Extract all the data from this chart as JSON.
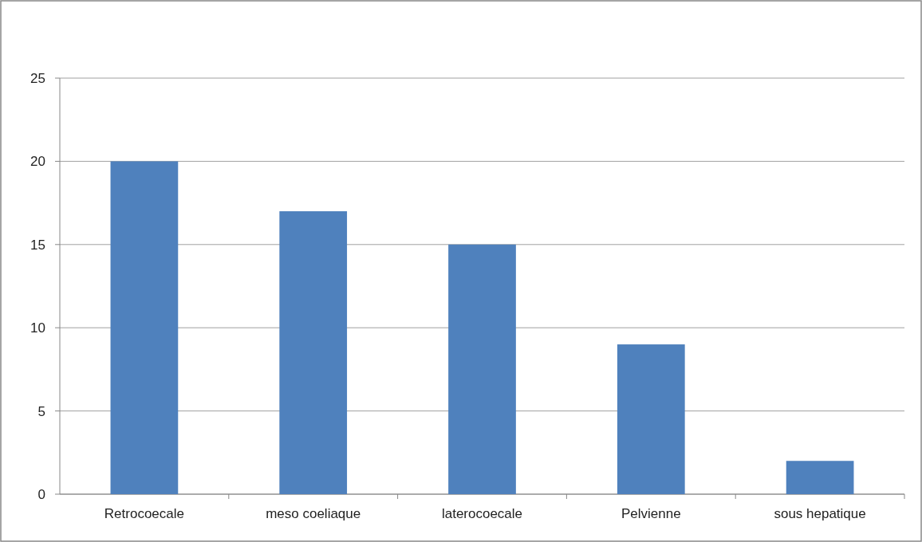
{
  "chart_data": {
    "type": "bar",
    "categories": [
      "Retrocoecale",
      "meso coeliaque",
      "laterocoecale",
      "Pelvienne",
      "sous hepatique"
    ],
    "values": [
      20,
      17,
      15,
      9,
      2
    ],
    "color": "#4f81bd",
    "ylim": [
      0,
      25
    ],
    "yticks": [
      0,
      5,
      10,
      15,
      20,
      25
    ],
    "grid": "y"
  }
}
